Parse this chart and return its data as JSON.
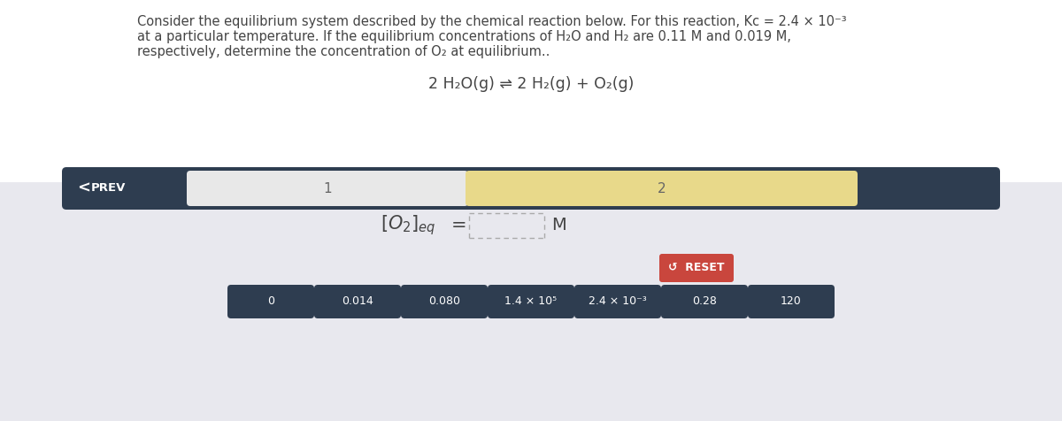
{
  "bg_top_color": "#ffffff",
  "bg_bottom_color": "#e8e8ee",
  "title_line1": "Consider the equilibrium system described by the chemical reaction below. For this reaction, Kc = 2.4 × 10⁻³",
  "title_line2": "at a particular temperature. If the equilibrium concentrations of H₂O and H₂ are 0.11 M and 0.019 M,",
  "title_line3": "respectively, determine the concentration of O₂ at equilibrium..",
  "reaction_text": "2 H₂O(g) ⇌ 2 H₂(g) + O₂(g)",
  "nav_bg_color": "#2e3d50",
  "tab1_color": "#e8e8e8",
  "tab2_color": "#e8d98a",
  "tab1_label": "1",
  "tab2_label": "2",
  "prev_text": "PREV",
  "equation_left": "[O₂]",
  "equation_sub": "eq",
  "equation_right": "M",
  "reset_color": "#c9463d",
  "reset_text": "↺  RESET",
  "btn_color": "#2e3d50",
  "btn_labels": [
    "0",
    "0.014",
    "0.080",
    "1.4 × 10⁵",
    "2.4 × 10⁻³",
    "0.28",
    "120"
  ],
  "btn_text_color": "#ffffff",
  "text_color": "#444444"
}
